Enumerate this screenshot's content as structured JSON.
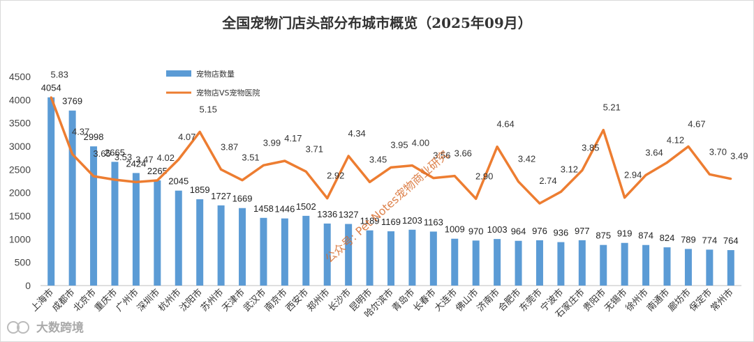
{
  "chart_data": {
    "type": "bar",
    "title": "全国宠物门店头部分布城市概览（2025年09月）",
    "categories": [
      "上海市",
      "成都市",
      "北京市",
      "重庆市",
      "广州市",
      "深圳市",
      "杭州市",
      "沈阳市",
      "苏州市",
      "天津市",
      "武汉市",
      "南京市",
      "西安市",
      "郑州市",
      "长沙市",
      "昆明市",
      "哈尔滨市",
      "青岛市",
      "长春市",
      "大连市",
      "佛山市",
      "济南市",
      "合肥市",
      "东莞市",
      "宁波市",
      "石家庄市",
      "贵阳市",
      "无锡市",
      "徐州市",
      "南通市",
      "廊坊市",
      "保定市",
      "常州市"
    ],
    "series": [
      {
        "name": "宠物店数量",
        "type": "bar",
        "color": "#5b9bd5",
        "values": [
          4054,
          3769,
          2998,
          2665,
          2424,
          2265,
          2045,
          1859,
          1727,
          1669,
          1458,
          1446,
          1502,
          1336,
          1327,
          1189,
          1169,
          1203,
          1163,
          1009,
          970,
          1003,
          964,
          976,
          936,
          977,
          875,
          919,
          874,
          824,
          789,
          774,
          764
        ],
        "labels": [
          "4054",
          "3769",
          "2998",
          "2665",
          "2424",
          "2265",
          "2045",
          "1859",
          "1727",
          "1669",
          "1458",
          "1446",
          "1502",
          "1336",
          "1327",
          "1189",
          "1169",
          "1203",
          "1163",
          "1009",
          "970",
          "1003",
          "964",
          "976",
          "936",
          "977",
          "875",
          "919",
          "874",
          "824",
          "789",
          "774",
          "764"
        ]
      },
      {
        "name": "宠物店VS宠物医院",
        "type": "line",
        "color": "#ed7d31",
        "values": [
          5.83,
          4.37,
          3.65,
          3.53,
          3.47,
          4.02,
          4.07,
          5.15,
          3.87,
          3.51,
          3.99,
          4.17,
          3.71,
          2.92,
          4.34,
          3.45,
          3.95,
          4.0,
          3.56,
          3.66,
          2.9,
          4.64,
          3.42,
          2.74,
          3.12,
          3.85,
          5.21,
          2.94,
          3.64,
          4.12,
          4.67,
          3.7,
          3.49
        ],
        "labels": [
          "5.83",
          "4.37",
          "3.65",
          "3.53",
          "3.47",
          "4.02",
          "4.07",
          "5.15",
          "3.87",
          "3.51",
          "3.99",
          "4.17",
          "3.71",
          "2.92",
          "4.34",
          "3.45",
          "3.95",
          "4.00",
          "3.56",
          "3.66",
          "2.90",
          "4.64",
          "3.42",
          "2.74",
          "3.12",
          "3.85",
          "5.21",
          "2.94",
          "3.64",
          "4.12",
          "4.67",
          "3.70",
          "3.49"
        ],
        "line_points": [
          4054,
          2830,
          2355,
          2280,
          2230,
          2265,
          2715,
          3310,
          2500,
          2270,
          2590,
          2685,
          2455,
          1880,
          2790,
          2230,
          2545,
          2585,
          2315,
          2360,
          1870,
          2990,
          2240,
          1770,
          2020,
          2480,
          3350,
          1895,
          2380,
          2650,
          2995,
          2395,
          2300
        ]
      }
    ],
    "ylim": [
      0,
      4500
    ],
    "yticks": [
      0,
      500,
      1000,
      1500,
      2000,
      2500,
      3000,
      3500,
      4000,
      4500
    ],
    "legend_position": "top-left",
    "grid": false
  },
  "watermark": "公众号: Pet Notes宠物商业研究",
  "brand": "大数跨境"
}
